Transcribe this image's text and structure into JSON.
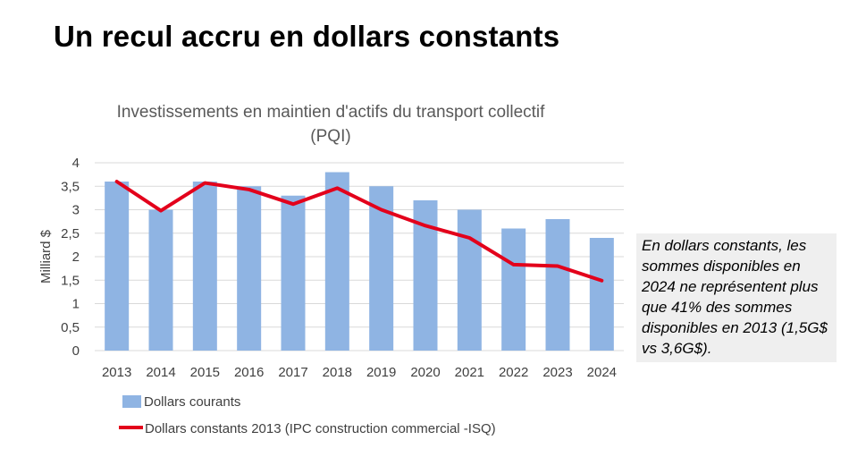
{
  "slide_title": "Un recul accru en dollars constants",
  "annotation": "En dollars constants, les sommes disponibles en 2024 ne représentent plus que 41% des sommes disponibles en 2013 (1,5G$ vs 3,6G$).",
  "chart_data": {
    "type": "bar",
    "title_line1": "Investissements en maintien d'actifs du transport collectif",
    "title_line2": "(PQI)",
    "ylabel": "Milliard $",
    "xlabel": "",
    "ylim": [
      0,
      4
    ],
    "yticks": [
      "0",
      "0,5",
      "1",
      "1,5",
      "2",
      "2,5",
      "3",
      "3,5",
      "4"
    ],
    "categories": [
      "2013",
      "2014",
      "2015",
      "2016",
      "2017",
      "2018",
      "2019",
      "2020",
      "2021",
      "2022",
      "2023",
      "2024"
    ],
    "series": [
      {
        "name": "Dollars courants",
        "kind": "bar",
        "color": "#8fb4e3",
        "values": [
          3.6,
          3.0,
          3.6,
          3.5,
          3.3,
          3.8,
          3.5,
          3.2,
          3.0,
          2.6,
          2.8,
          2.4
        ]
      },
      {
        "name": "Dollars constants 2013 (IPC construction commercial -ISQ)",
        "kind": "line",
        "color": "#e3001b",
        "values": [
          3.6,
          2.98,
          3.57,
          3.43,
          3.12,
          3.46,
          3.0,
          2.66,
          2.4,
          1.83,
          1.8,
          1.49
        ]
      }
    ],
    "grid": true,
    "legend_position": "bottom"
  }
}
